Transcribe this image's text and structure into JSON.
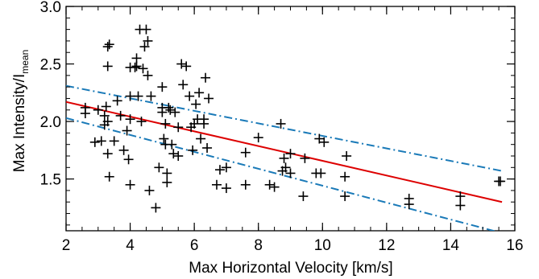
{
  "chart_data": {
    "type": "scatter",
    "title": "",
    "xlabel": "Max Horizontal Velocity [km/s]",
    "ylabel": {
      "main": "Max Intensity/I",
      "subscript": "mean"
    },
    "xlim": [
      2,
      16
    ],
    "ylim": [
      1.05,
      3.0
    ],
    "xticks": [
      2,
      4,
      6,
      8,
      10,
      12,
      14,
      16
    ],
    "xtick_labels": [
      "2",
      "4",
      "6",
      "8",
      "10",
      "12",
      "14",
      "16"
    ],
    "yticks": [
      1.5,
      2.0,
      2.5,
      3.0
    ],
    "ytick_labels": [
      "1.5",
      "2.0",
      "2.5",
      "3.0"
    ],
    "x_minor_step": 0.5,
    "y_minor_step": 0.1,
    "grid": false,
    "marker": "plus",
    "colors": {
      "points": "#000000",
      "fit": "#dd0000",
      "bounds": "#1a7ab8"
    },
    "series": [
      {
        "type": "scatter",
        "points": [
          [
            2.6,
            2.07
          ],
          [
            2.6,
            2.12
          ],
          [
            2.9,
            1.82
          ],
          [
            3.0,
            2.1
          ],
          [
            3.1,
            1.83
          ],
          [
            3.2,
            1.97
          ],
          [
            3.2,
            2.05
          ],
          [
            3.25,
            2.13
          ],
          [
            3.3,
            2.0
          ],
          [
            3.3,
            1.72
          ],
          [
            3.35,
            1.52
          ],
          [
            3.3,
            2.48
          ],
          [
            3.3,
            2.65
          ],
          [
            3.35,
            2.67
          ],
          [
            3.5,
            1.83
          ],
          [
            3.6,
            2.18
          ],
          [
            3.7,
            2.05
          ],
          [
            3.8,
            1.75
          ],
          [
            3.9,
            1.92
          ],
          [
            3.95,
            1.67
          ],
          [
            4.0,
            2.02
          ],
          [
            4.0,
            2.22
          ],
          [
            4.0,
            1.45
          ],
          [
            4.0,
            2.47
          ],
          [
            4.15,
            2.47
          ],
          [
            4.2,
            2.48
          ],
          [
            4.2,
            2.55
          ],
          [
            4.25,
            2.22
          ],
          [
            4.3,
            2.8
          ],
          [
            4.35,
            2.0
          ],
          [
            4.4,
            2.46
          ],
          [
            4.45,
            2.65
          ],
          [
            4.5,
            2.8
          ],
          [
            4.55,
            2.7
          ],
          [
            4.55,
            2.4
          ],
          [
            4.65,
            2.22
          ],
          [
            4.6,
            1.4
          ],
          [
            4.8,
            1.25
          ],
          [
            4.9,
            1.6
          ],
          [
            5.0,
            2.3
          ],
          [
            5.0,
            2.12
          ],
          [
            5.0,
            2.08
          ],
          [
            5.05,
            1.85
          ],
          [
            5.1,
            1.98
          ],
          [
            5.1,
            1.8
          ],
          [
            5.15,
            1.55
          ],
          [
            5.15,
            1.47
          ],
          [
            5.2,
            2.12
          ],
          [
            5.25,
            2.1
          ],
          [
            5.3,
            1.8
          ],
          [
            5.35,
            1.72
          ],
          [
            5.4,
            2.08
          ],
          [
            5.5,
            1.7
          ],
          [
            5.5,
            1.95
          ],
          [
            5.6,
            2.5
          ],
          [
            5.65,
            2.32
          ],
          [
            5.75,
            2.48
          ],
          [
            5.85,
            2.22
          ],
          [
            5.9,
            1.95
          ],
          [
            5.95,
            1.75
          ],
          [
            6.0,
            1.98
          ],
          [
            6.05,
            2.15
          ],
          [
            6.1,
            2.02
          ],
          [
            6.15,
            2.25
          ],
          [
            6.2,
            1.85
          ],
          [
            6.3,
            1.98
          ],
          [
            6.3,
            2.02
          ],
          [
            6.35,
            2.38
          ],
          [
            6.4,
            1.77
          ],
          [
            6.45,
            2.2
          ],
          [
            6.7,
            1.45
          ],
          [
            6.8,
            1.58
          ],
          [
            7.0,
            1.42
          ],
          [
            7.0,
            1.6
          ],
          [
            7.6,
            1.73
          ],
          [
            7.6,
            1.45
          ],
          [
            8.0,
            1.86
          ],
          [
            8.35,
            1.45
          ],
          [
            8.5,
            1.43
          ],
          [
            8.7,
            1.98
          ],
          [
            8.75,
            1.57
          ],
          [
            8.8,
            1.68
          ],
          [
            8.85,
            1.6
          ],
          [
            9.0,
            1.55
          ],
          [
            9.0,
            1.72
          ],
          [
            9.4,
            1.35
          ],
          [
            9.45,
            1.68
          ],
          [
            9.8,
            1.55
          ],
          [
            9.9,
            1.85
          ],
          [
            9.95,
            1.55
          ],
          [
            10.05,
            1.82
          ],
          [
            10.7,
            1.52
          ],
          [
            10.7,
            1.35
          ],
          [
            10.75,
            1.7
          ],
          [
            12.7,
            1.33
          ],
          [
            12.7,
            1.28
          ],
          [
            14.3,
            1.35
          ],
          [
            14.3,
            1.27
          ],
          [
            15.5,
            1.48
          ],
          [
            15.55,
            1.48
          ]
        ]
      },
      {
        "type": "line",
        "style": "solid",
        "x": [
          2,
          15.6
        ],
        "y": [
          2.17,
          1.3
        ]
      },
      {
        "type": "line",
        "style": "dash-dot",
        "x": [
          2,
          15.6
        ],
        "y": [
          2.31,
          1.57
        ]
      },
      {
        "type": "line",
        "style": "dash-dot",
        "x": [
          2,
          15.6
        ],
        "y": [
          2.03,
          1.03
        ]
      }
    ]
  }
}
